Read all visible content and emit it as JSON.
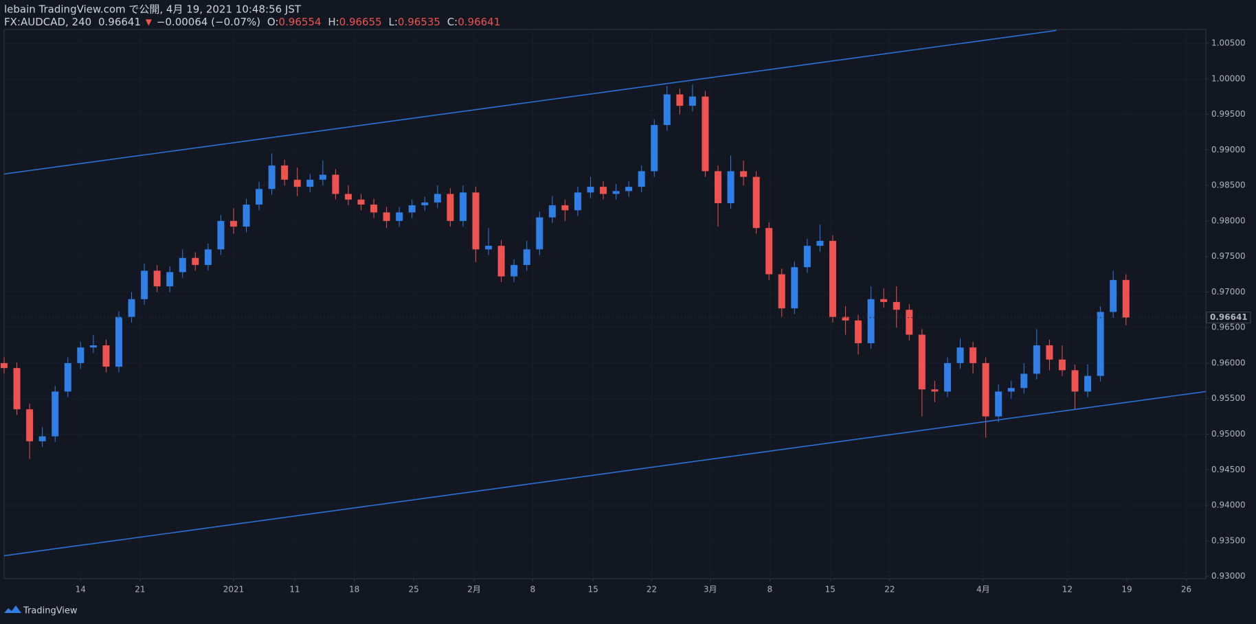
{
  "header": {
    "line1": "lebain TradingView.com で公開, 4月 19, 2021 10:48:56 JST",
    "symbol": "FX:AUDCAD, 240",
    "price": "0.96641",
    "arrow": "▼",
    "change": "−0.00064 (−0.07%)",
    "o_label": "O:",
    "o": "0.96554",
    "h_label": "H:",
    "h": "0.96655",
    "l_label": "L:",
    "l": "0.96535",
    "c_label": "C:",
    "c": "0.96641"
  },
  "footer": {
    "brand": "TradingView"
  },
  "chart_data": {
    "type": "candlestick",
    "up_color": "#2f7fe6",
    "down_color": "#ef5350",
    "line_color": "#2a73d9",
    "xlim": [
      0,
      141.4
    ],
    "ylim": [
      0.92967,
      1.00693
    ],
    "xticks": [
      {
        "value": 9.0,
        "label": "14"
      },
      {
        "value": 16.0,
        "label": "21"
      },
      {
        "value": 27.0,
        "label": "2021"
      },
      {
        "value": 34.2,
        "label": "11"
      },
      {
        "value": 41.2,
        "label": "18"
      },
      {
        "value": 48.2,
        "label": "25"
      },
      {
        "value": 55.3,
        "label": "2月"
      },
      {
        "value": 62.2,
        "label": "8"
      },
      {
        "value": 69.3,
        "label": "15"
      },
      {
        "value": 76.2,
        "label": "22"
      },
      {
        "value": 83.1,
        "label": "3月"
      },
      {
        "value": 90.1,
        "label": "8"
      },
      {
        "value": 97.2,
        "label": "15"
      },
      {
        "value": 104.2,
        "label": "22"
      },
      {
        "value": 115.2,
        "label": "4月"
      },
      {
        "value": 125.1,
        "label": "12"
      },
      {
        "value": 132.1,
        "label": "19"
      },
      {
        "value": 139.1,
        "label": "26"
      }
    ],
    "yticks": [
      {
        "value": 0.93,
        "label": "0.93000"
      },
      {
        "value": 0.935,
        "label": "0.93500"
      },
      {
        "value": 0.94,
        "label": "0.94000"
      },
      {
        "value": 0.945,
        "label": "0.94500"
      },
      {
        "value": 0.95,
        "label": "0.95000"
      },
      {
        "value": 0.955,
        "label": "0.95500"
      },
      {
        "value": 0.96,
        "label": "0.96000"
      },
      {
        "value": 0.965,
        "label": "0.96500"
      },
      {
        "value": 0.97,
        "label": "0.97000"
      },
      {
        "value": 0.975,
        "label": "0.97500"
      },
      {
        "value": 0.98,
        "label": "0.98000"
      },
      {
        "value": 0.985,
        "label": "0.98500"
      },
      {
        "value": 0.99,
        "label": "0.99000"
      },
      {
        "value": 0.995,
        "label": "0.99500"
      },
      {
        "value": 1.0,
        "label": "1.00000"
      },
      {
        "value": 1.005,
        "label": "1.00500"
      }
    ],
    "last_price": {
      "value": 0.96641,
      "label": "0.96641"
    },
    "trendlines": [
      {
        "x": [
          0,
          123.8
        ],
        "y": [
          0.9866,
          1.0068
        ]
      },
      {
        "x": [
          0,
          141.4
        ],
        "y": [
          0.9329,
          0.956
        ]
      }
    ],
    "x": [
      0,
      1.5,
      3,
      4.5,
      6,
      7.5,
      9,
      10.5,
      12,
      13.5,
      15,
      16.5,
      18,
      19.5,
      21,
      22.5,
      24,
      25.5,
      27,
      28.5,
      30,
      31.5,
      33,
      34.5,
      36,
      37.5,
      39,
      40.5,
      42,
      43.5,
      45,
      46.5,
      48,
      49.5,
      51,
      52.5,
      54,
      55.5,
      57,
      58.5,
      60,
      61.5,
      63,
      64.5,
      66,
      67.5,
      69,
      70.5,
      72,
      73.5,
      75,
      76.5,
      78,
      79.5,
      81,
      82.5,
      84,
      85.5,
      87,
      88.5,
      90,
      91.5,
      93,
      94.5,
      96,
      97.5,
      99,
      100.5,
      102,
      103.5,
      105,
      106.5,
      108,
      109.5,
      111,
      112.5,
      114,
      115.5,
      117,
      118.5,
      120,
      121.5,
      123,
      124.5,
      126,
      127.5,
      129,
      130.5,
      132
    ],
    "ohlc": [
      [
        0.96,
        0.9608,
        0.9585,
        0.9593
      ],
      [
        0.9593,
        0.9601,
        0.9527,
        0.9535
      ],
      [
        0.9535,
        0.9543,
        0.9465,
        0.949
      ],
      [
        0.949,
        0.951,
        0.9482,
        0.9497
      ],
      [
        0.9497,
        0.9568,
        0.9489,
        0.956
      ],
      [
        0.956,
        0.9608,
        0.9552,
        0.96
      ],
      [
        0.96,
        0.963,
        0.9592,
        0.9622
      ],
      [
        0.9622,
        0.964,
        0.9614,
        0.9625
      ],
      [
        0.9625,
        0.9633,
        0.9587,
        0.9595
      ],
      [
        0.9595,
        0.9673,
        0.9587,
        0.9665
      ],
      [
        0.9665,
        0.97,
        0.9657,
        0.969
      ],
      [
        0.969,
        0.974,
        0.9682,
        0.973
      ],
      [
        0.973,
        0.9738,
        0.97,
        0.9708
      ],
      [
        0.9708,
        0.9736,
        0.97,
        0.9728
      ],
      [
        0.9728,
        0.976,
        0.972,
        0.9748
      ],
      [
        0.9748,
        0.9756,
        0.973,
        0.9738
      ],
      [
        0.9738,
        0.9768,
        0.973,
        0.976
      ],
      [
        0.976,
        0.9808,
        0.9752,
        0.98
      ],
      [
        0.98,
        0.9818,
        0.9782,
        0.9792
      ],
      [
        0.9792,
        0.9831,
        0.9784,
        0.9823
      ],
      [
        0.9823,
        0.9855,
        0.9815,
        0.9845
      ],
      [
        0.9845,
        0.9895,
        0.9837,
        0.9878
      ],
      [
        0.9878,
        0.9886,
        0.985,
        0.9858
      ],
      [
        0.9858,
        0.9875,
        0.9835,
        0.9848
      ],
      [
        0.9848,
        0.9866,
        0.984,
        0.9858
      ],
      [
        0.9858,
        0.9885,
        0.985,
        0.9865
      ],
      [
        0.9865,
        0.9873,
        0.983,
        0.9838
      ],
      [
        0.9838,
        0.985,
        0.9822,
        0.983
      ],
      [
        0.983,
        0.9838,
        0.9815,
        0.9823
      ],
      [
        0.9823,
        0.9831,
        0.9804,
        0.9812
      ],
      [
        0.9812,
        0.982,
        0.979,
        0.98
      ],
      [
        0.98,
        0.982,
        0.9792,
        0.9812
      ],
      [
        0.9812,
        0.983,
        0.9804,
        0.9822
      ],
      [
        0.9822,
        0.9834,
        0.9814,
        0.9826
      ],
      [
        0.9826,
        0.985,
        0.9818,
        0.9838
      ],
      [
        0.9838,
        0.9846,
        0.9792,
        0.98
      ],
      [
        0.98,
        0.985,
        0.9792,
        0.984
      ],
      [
        0.984,
        0.9848,
        0.9742,
        0.976
      ],
      [
        0.976,
        0.979,
        0.9752,
        0.9765
      ],
      [
        0.9765,
        0.9773,
        0.9714,
        0.9722
      ],
      [
        0.9722,
        0.9746,
        0.9714,
        0.9738
      ],
      [
        0.9738,
        0.9772,
        0.973,
        0.976
      ],
      [
        0.976,
        0.9813,
        0.9752,
        0.9805
      ],
      [
        0.9805,
        0.9835,
        0.9797,
        0.9822
      ],
      [
        0.9822,
        0.983,
        0.98,
        0.9815
      ],
      [
        0.9815,
        0.9848,
        0.9807,
        0.984
      ],
      [
        0.984,
        0.9862,
        0.9832,
        0.9848
      ],
      [
        0.9848,
        0.9856,
        0.983,
        0.9838
      ],
      [
        0.9838,
        0.9852,
        0.983,
        0.9842
      ],
      [
        0.9842,
        0.9856,
        0.9834,
        0.9848
      ],
      [
        0.9848,
        0.9878,
        0.984,
        0.987
      ],
      [
        0.987,
        0.9943,
        0.9862,
        0.9935
      ],
      [
        0.9935,
        0.999,
        0.9927,
        0.9978
      ],
      [
        0.9978,
        0.9986,
        0.995,
        0.9962
      ],
      [
        0.9962,
        0.9992,
        0.9954,
        0.9975
      ],
      [
        0.9975,
        0.9983,
        0.9862,
        0.987
      ],
      [
        0.987,
        0.9878,
        0.9792,
        0.9825
      ],
      [
        0.9825,
        0.9892,
        0.9817,
        0.987
      ],
      [
        0.987,
        0.9885,
        0.985,
        0.9862
      ],
      [
        0.9862,
        0.987,
        0.9782,
        0.979
      ],
      [
        0.979,
        0.9798,
        0.9717,
        0.9725
      ],
      [
        0.9725,
        0.9733,
        0.9665,
        0.9677
      ],
      [
        0.9677,
        0.9743,
        0.9669,
        0.9735
      ],
      [
        0.9735,
        0.9775,
        0.9727,
        0.9765
      ],
      [
        0.9765,
        0.9795,
        0.9757,
        0.9772
      ],
      [
        0.9772,
        0.978,
        0.9657,
        0.9665
      ],
      [
        0.9665,
        0.968,
        0.964,
        0.966
      ],
      [
        0.966,
        0.9668,
        0.9612,
        0.9628
      ],
      [
        0.9628,
        0.9708,
        0.962,
        0.969
      ],
      [
        0.969,
        0.9705,
        0.9678,
        0.9686
      ],
      [
        0.9686,
        0.9708,
        0.965,
        0.9675
      ],
      [
        0.9675,
        0.9683,
        0.9632,
        0.964
      ],
      [
        0.964,
        0.9648,
        0.9525,
        0.9563
      ],
      [
        0.9563,
        0.9575,
        0.9545,
        0.956
      ],
      [
        0.956,
        0.9608,
        0.9552,
        0.96
      ],
      [
        0.96,
        0.9635,
        0.9592,
        0.9622
      ],
      [
        0.9622,
        0.963,
        0.9585,
        0.96
      ],
      [
        0.96,
        0.9608,
        0.9495,
        0.9525
      ],
      [
        0.9525,
        0.957,
        0.9517,
        0.956
      ],
      [
        0.956,
        0.9575,
        0.955,
        0.9565
      ],
      [
        0.9565,
        0.96,
        0.9557,
        0.9585
      ],
      [
        0.9585,
        0.9648,
        0.9577,
        0.9625
      ],
      [
        0.9625,
        0.9633,
        0.959,
        0.9605
      ],
      [
        0.9605,
        0.9625,
        0.9582,
        0.959
      ],
      [
        0.959,
        0.9598,
        0.9535,
        0.956
      ],
      [
        0.956,
        0.9598,
        0.9552,
        0.9582
      ],
      [
        0.9582,
        0.968,
        0.9574,
        0.9672
      ],
      [
        0.9672,
        0.973,
        0.9664,
        0.9717
      ],
      [
        0.9717,
        0.9725,
        0.9653,
        0.9664
      ]
    ]
  }
}
